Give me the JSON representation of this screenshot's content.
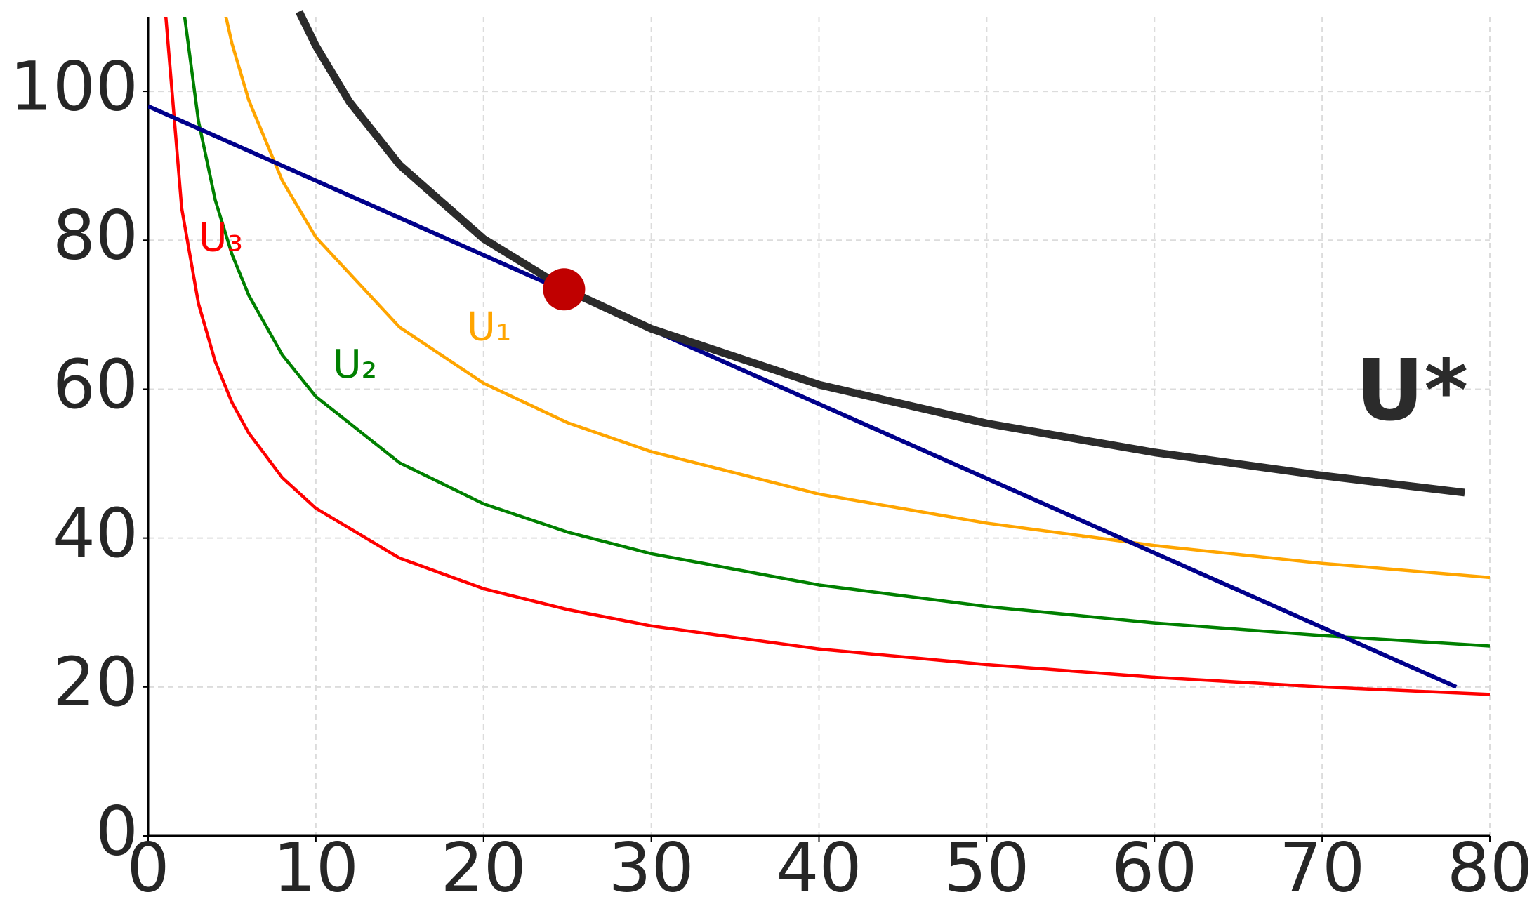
{
  "chart_data": {
    "type": "line",
    "xlim": [
      0,
      80
    ],
    "ylim": [
      0,
      110
    ],
    "xticks": [
      0,
      10,
      20,
      30,
      40,
      50,
      60,
      70,
      80
    ],
    "yticks": [
      0,
      20,
      40,
      60,
      80,
      100
    ],
    "grid": true,
    "series": [
      {
        "name": "U₃",
        "color": "#ff0000",
        "x": [
          1,
          2,
          3,
          4,
          5,
          6,
          8,
          10,
          15,
          20,
          25,
          30,
          40,
          50,
          60,
          70,
          80
        ],
        "values": [
          111.5,
          84.3,
          71.5,
          63.7,
          58.2,
          54.1,
          48.1,
          44.0,
          37.3,
          33.2,
          30.4,
          28.2,
          25.1,
          23.0,
          21.3,
          20.0,
          19.0
        ]
      },
      {
        "name": "U₂",
        "color": "#008000",
        "x": [
          2,
          3,
          4,
          5,
          6,
          8,
          10,
          15,
          20,
          25,
          30,
          40,
          50,
          60,
          70,
          80
        ],
        "values": [
          113.0,
          96.0,
          85.4,
          78.1,
          72.6,
          64.6,
          59.0,
          50.1,
          44.6,
          40.8,
          37.9,
          33.7,
          30.8,
          28.6,
          26.9,
          25.5
        ]
      },
      {
        "name": "U₁",
        "color": "#ffa500",
        "x": [
          4,
          5,
          6,
          8,
          10,
          15,
          20,
          25,
          30,
          40,
          50,
          60,
          70,
          80
        ],
        "values": [
          116.4,
          106.4,
          98.8,
          88.0,
          80.4,
          68.3,
          60.8,
          55.5,
          51.6,
          45.9,
          42.0,
          39.0,
          36.6,
          34.7
        ]
      },
      {
        "color": "#00008b",
        "x": [
          0,
          78
        ],
        "values": [
          98,
          20
        ]
      },
      {
        "name": "U*",
        "color": "#2b2b2b",
        "x": [
          9,
          10,
          12,
          15,
          20,
          25,
          30,
          40,
          50,
          60,
          70,
          78.5
        ],
        "values": [
          110.7,
          106.1,
          98.6,
          90.1,
          80.2,
          73.3,
          68.1,
          60.6,
          55.4,
          51.5,
          48.4,
          46.1
        ]
      }
    ],
    "point": {
      "x": 24.8,
      "y": 73.4,
      "color": "#c00000"
    }
  }
}
